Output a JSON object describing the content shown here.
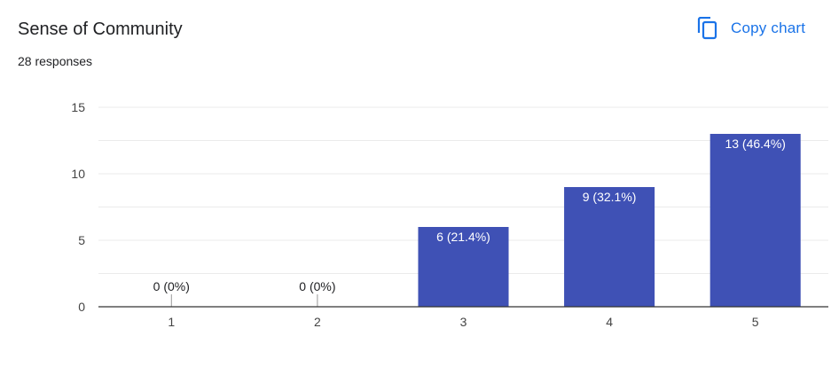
{
  "header": {
    "title": "Sense of Community",
    "responses": "28 responses",
    "copy_label": "Copy chart",
    "copy_icon": "copy-icon"
  },
  "colors": {
    "bar": "#3f51b5",
    "accent": "#1a73e8",
    "grid": "#ebebeb",
    "axis": "#333333"
  },
  "chart_data": {
    "type": "bar",
    "title": "Sense of Community",
    "categories": [
      "1",
      "2",
      "3",
      "4",
      "5"
    ],
    "values": [
      0,
      0,
      6,
      9,
      13
    ],
    "data_labels": [
      "0 (0%)",
      "0 (0%)",
      "6 (21.4%)",
      "9 (32.1%)",
      "13 (46.4%)"
    ],
    "ylim": [
      0,
      15
    ],
    "y_ticks": [
      0,
      5,
      10,
      15
    ],
    "xlabel": "",
    "ylabel": "",
    "grid": true
  }
}
